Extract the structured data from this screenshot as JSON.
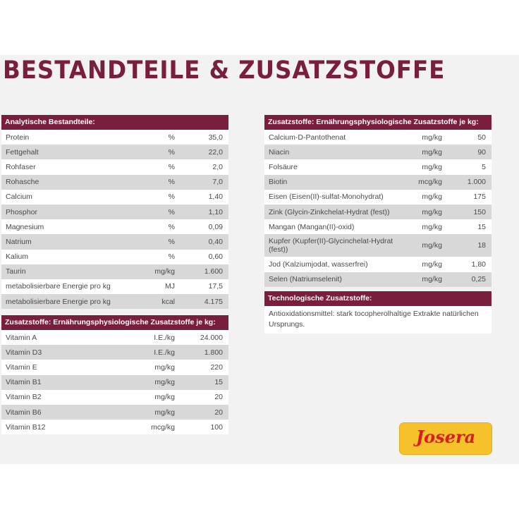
{
  "title": "BESTANDTEILE & ZUSATZSTOFFE",
  "analytische": {
    "header": "Analytische Bestandteile:",
    "rows": [
      {
        "name": "Protein",
        "unit": "%",
        "value": "35,0"
      },
      {
        "name": "Fettgehalt",
        "unit": "%",
        "value": "22,0"
      },
      {
        "name": "Rohfaser",
        "unit": "%",
        "value": "2,0"
      },
      {
        "name": "Rohasche",
        "unit": "%",
        "value": "7,0"
      },
      {
        "name": "Calcium",
        "unit": "%",
        "value": "1,40"
      },
      {
        "name": "Phosphor",
        "unit": "%",
        "value": "1,10"
      },
      {
        "name": "Magnesium",
        "unit": "%",
        "value": "0,09"
      },
      {
        "name": "Natrium",
        "unit": "%",
        "value": "0,40"
      },
      {
        "name": "Kalium",
        "unit": "%",
        "value": "0,60"
      },
      {
        "name": "Taurin",
        "unit": "mg/kg",
        "value": "1.600"
      },
      {
        "name": "metabolisierbare Energie pro kg",
        "unit": "MJ",
        "value": "17,5"
      },
      {
        "name": "metabolisierbare Energie pro kg",
        "unit": "kcal",
        "value": "4.175"
      }
    ]
  },
  "vitamine": {
    "header": "Zusatzstoffe: Ernährungsphysiologische Zusatzstoffe je kg:",
    "rows": [
      {
        "name": "Vitamin A",
        "unit": "I.E./kg",
        "value": "24.000"
      },
      {
        "name": "Vitamin D3",
        "unit": "I.E./kg",
        "value": "1.800"
      },
      {
        "name": "Vitamin E",
        "unit": "mg/kg",
        "value": "220"
      },
      {
        "name": "Vitamin B1",
        "unit": "mg/kg",
        "value": "15"
      },
      {
        "name": "Vitamin B2",
        "unit": "mg/kg",
        "value": "20"
      },
      {
        "name": "Vitamin B6",
        "unit": "mg/kg",
        "value": "20"
      },
      {
        "name": "Vitamin B12",
        "unit": "mcg/kg",
        "value": "100"
      }
    ]
  },
  "spurenelemente": {
    "header": "Zusatzstoffe: Ernährungsphysiologische Zusatzstoffe je kg:",
    "rows": [
      {
        "name": "Calcium-D-Pantothenat",
        "unit": "mg/kg",
        "value": "50"
      },
      {
        "name": "Niacin",
        "unit": "mg/kg",
        "value": "90"
      },
      {
        "name": "Folsäure",
        "unit": "mg/kg",
        "value": "5"
      },
      {
        "name": "Biotin",
        "unit": "mcg/kg",
        "value": "1.000"
      },
      {
        "name": "Eisen (Eisen(II)-sulfat-Monohydrat)",
        "unit": "mg/kg",
        "value": "175"
      },
      {
        "name": "Zink (Glycin-Zinkchelat-Hydrat (fest))",
        "unit": "mg/kg",
        "value": "150"
      },
      {
        "name": "Mangan (Mangan(II)-oxid)",
        "unit": "mg/kg",
        "value": "15"
      },
      {
        "name": "Kupfer (Kupfer(II)-Glycinchelat-Hydrat (fest))",
        "unit": "mg/kg",
        "value": "18"
      },
      {
        "name": "Jod (Kalziumjodat, wasserfrei)",
        "unit": "mg/kg",
        "value": "1,80"
      },
      {
        "name": "Selen (Natriumselenit)",
        "unit": "mg/kg",
        "value": "0,25"
      }
    ]
  },
  "technologisch": {
    "header": "Technologische Zusatzstoffe:",
    "text": "Antioxidationsmittel: stark tocopherolhaltige Extrakte natürlichen Ursprungs."
  },
  "logo": {
    "text": "Josera"
  },
  "colors": {
    "accent": "#7a1e3e",
    "stripe": "#d8d8d8",
    "logo_bg": "#f6c22b",
    "logo_text": "#d5211c"
  }
}
